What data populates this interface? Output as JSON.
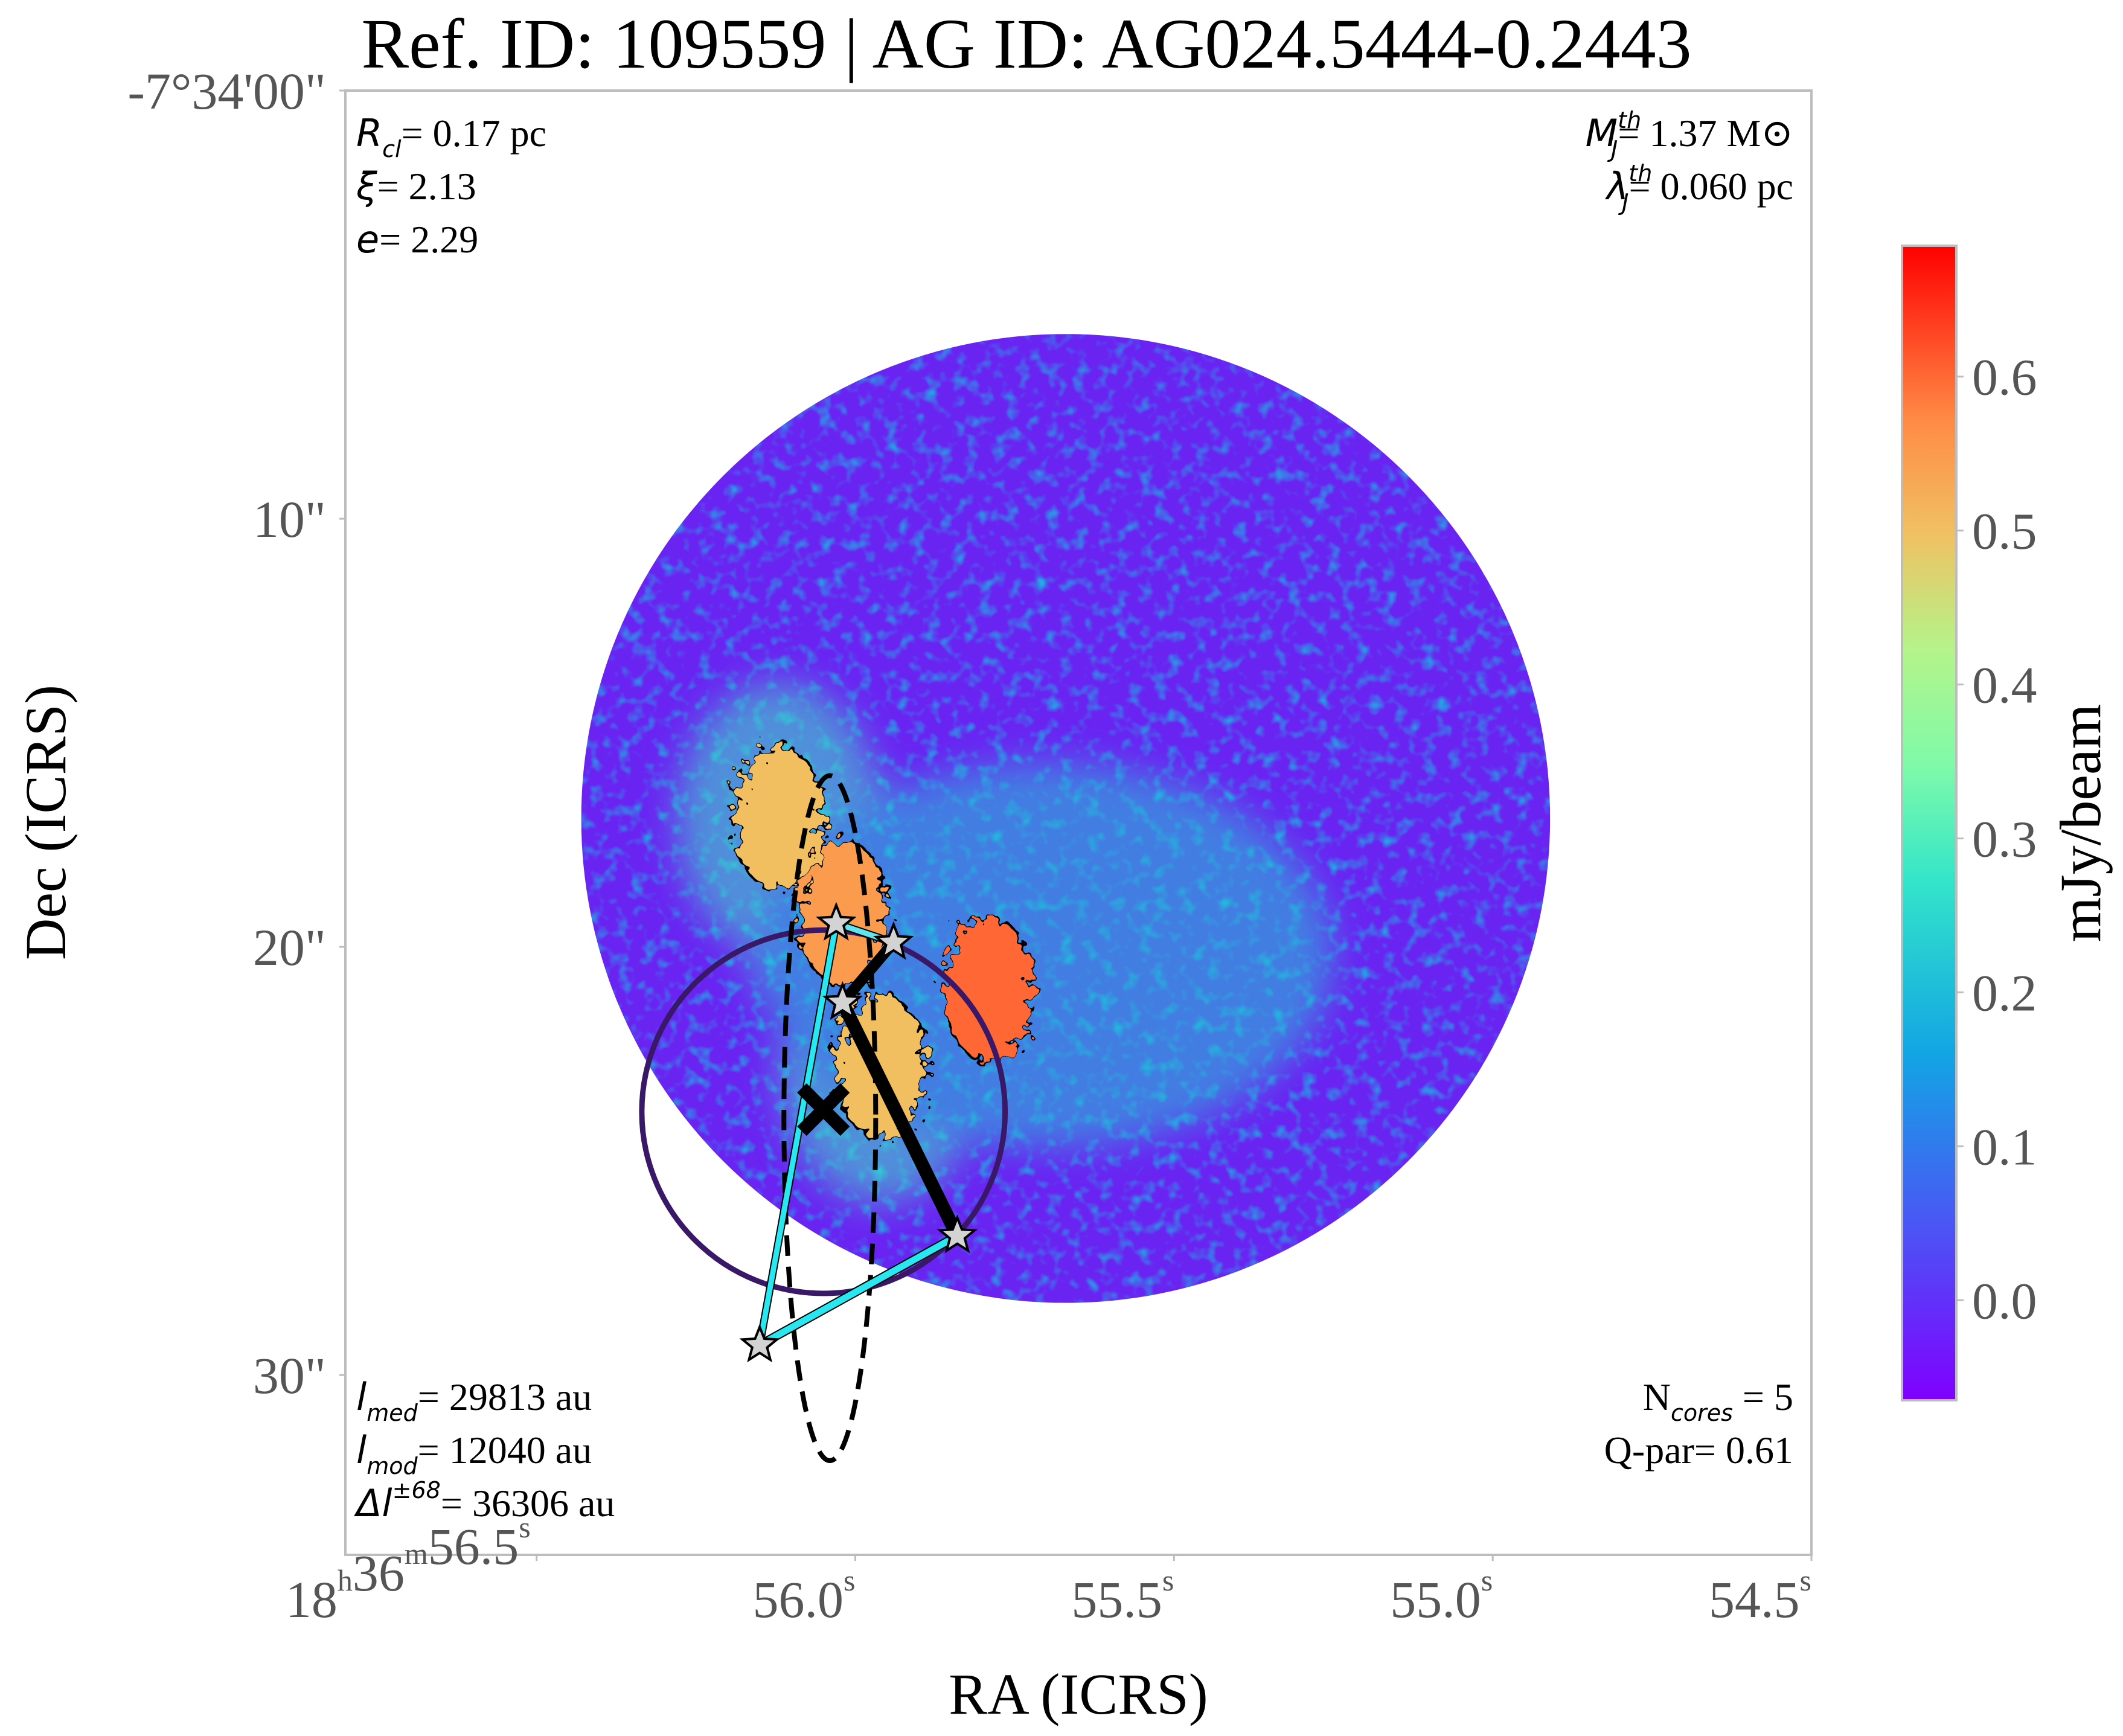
{
  "title": "Ref. ID: 109559 | AG ID: AG024.5444-0.2443",
  "axes": {
    "xlabel": "RA (ICRS)",
    "ylabel": "Dec (ICRS)",
    "x_ticks": [
      {
        "h": "18",
        "m": "36",
        "s": "56.5",
        "ra_s": 56.5,
        "full": true
      },
      {
        "s": "56.0",
        "ra_s": 56.0
      },
      {
        "s": "55.5",
        "ra_s": 55.5
      },
      {
        "s": "55.0",
        "ra_s": 55.0
      },
      {
        "s": "54.5",
        "ra_s": 54.5
      }
    ],
    "x_units": {
      "h": "h",
      "m": "m",
      "s": "s"
    },
    "y_ticks": [
      {
        "label": "-7°34'00\"",
        "dec_arcsec": 0
      },
      {
        "label": "10\"",
        "dec_arcsec": 10
      },
      {
        "label": "20\"",
        "dec_arcsec": 20
      },
      {
        "label": "30\"",
        "dec_arcsec": 30
      }
    ]
  },
  "annotations": {
    "top_left": [
      {
        "sym": "R",
        "sub": "cl",
        "text": "= 0.17 pc"
      },
      {
        "sym": "ξ",
        "sub": "",
        "text": "= 2.13"
      },
      {
        "sym": "e",
        "sub": "",
        "text": "= 2.29"
      }
    ],
    "top_right": [
      {
        "sym": "M",
        "sub": "J",
        "sup": "th",
        "text": "= 1.37 M⊙"
      },
      {
        "sym": "λ",
        "sub": "J",
        "sup": "th",
        "text": "= 0.060 pc"
      }
    ],
    "bottom_left": [
      {
        "sym": "l",
        "sub": "med",
        "text": "= 29813 au"
      },
      {
        "sym": "l",
        "sub": "mod",
        "text": "= 12040 au"
      },
      {
        "sym": "Δl",
        "sup": "±68",
        "text": "= 36306 au"
      }
    ],
    "bottom_right": [
      {
        "pre": "N",
        "sub": "cores",
        "text": " = 5"
      },
      {
        "pre": "Q-par",
        "sub": "",
        "text": "= 0.61"
      }
    ]
  },
  "colorbar": {
    "label": "mJy/beam",
    "ticks": [
      "0.0",
      "0.1",
      "0.2",
      "0.3",
      "0.4",
      "0.5",
      "0.6"
    ],
    "tick_values": [
      0.0,
      0.1,
      0.2,
      0.3,
      0.4,
      0.5,
      0.6
    ],
    "vmin": -0.065,
    "vmax": 0.685,
    "colormap": "rainbow"
  },
  "chart_data": {
    "type": "heatmap",
    "description_units": {
      "x": "RA seconds (18h36m)",
      "y": "Dec arcsec offset below -7°34'00\""
    },
    "x_range": [
      56.8,
      54.5
    ],
    "y_range": [
      0,
      34.2
    ],
    "field_circle": {
      "center": [
        55.67,
        17.0
      ],
      "radius_ra_s": 0.76
    },
    "clump_circle": {
      "center": [
        56.05,
        23.85
      ],
      "radius_ra_s": 0.285
    },
    "ellipse": {
      "center": [
        56.04,
        24.0
      ],
      "semi_ra_s": 0.072,
      "semi_dec_arcsec": 8.0
    },
    "centroid": [
      56.05,
      23.8
    ],
    "cores": [
      {
        "ra_s": 56.03,
        "dec_arcsec": 19.45
      },
      {
        "ra_s": 55.94,
        "dec_arcsec": 19.9
      },
      {
        "ra_s": 56.02,
        "dec_arcsec": 21.3
      },
      {
        "ra_s": 55.84,
        "dec_arcsec": 26.75
      },
      {
        "ra_s": 56.15,
        "dec_arcsec": 29.3
      }
    ],
    "mst_edges": [
      {
        "from": 0,
        "to": 1,
        "color": "#5fe6ec",
        "width": 9
      },
      {
        "from": 1,
        "to": 2,
        "color": "#000000",
        "width": 14
      },
      {
        "from": 2,
        "to": 3,
        "color": "#000000",
        "width": 18
      },
      {
        "from": 3,
        "to": 4,
        "color": "#27e8f0",
        "width": 11
      },
      {
        "from": 4,
        "to": 0,
        "color": "#27e8f0",
        "width": 9
      }
    ],
    "emission_peaks_mJy_beam": [
      {
        "ra_s": 55.79,
        "dec_arcsec": 21.0,
        "value": 0.6
      },
      {
        "ra_s": 56.02,
        "dec_arcsec": 19.2,
        "value": 0.55
      },
      {
        "ra_s": 55.96,
        "dec_arcsec": 22.8,
        "value": 0.5
      },
      {
        "ra_s": 56.12,
        "dec_arcsec": 17.0,
        "value": 0.5
      }
    ],
    "background_level_mJy_beam": 0.05
  }
}
